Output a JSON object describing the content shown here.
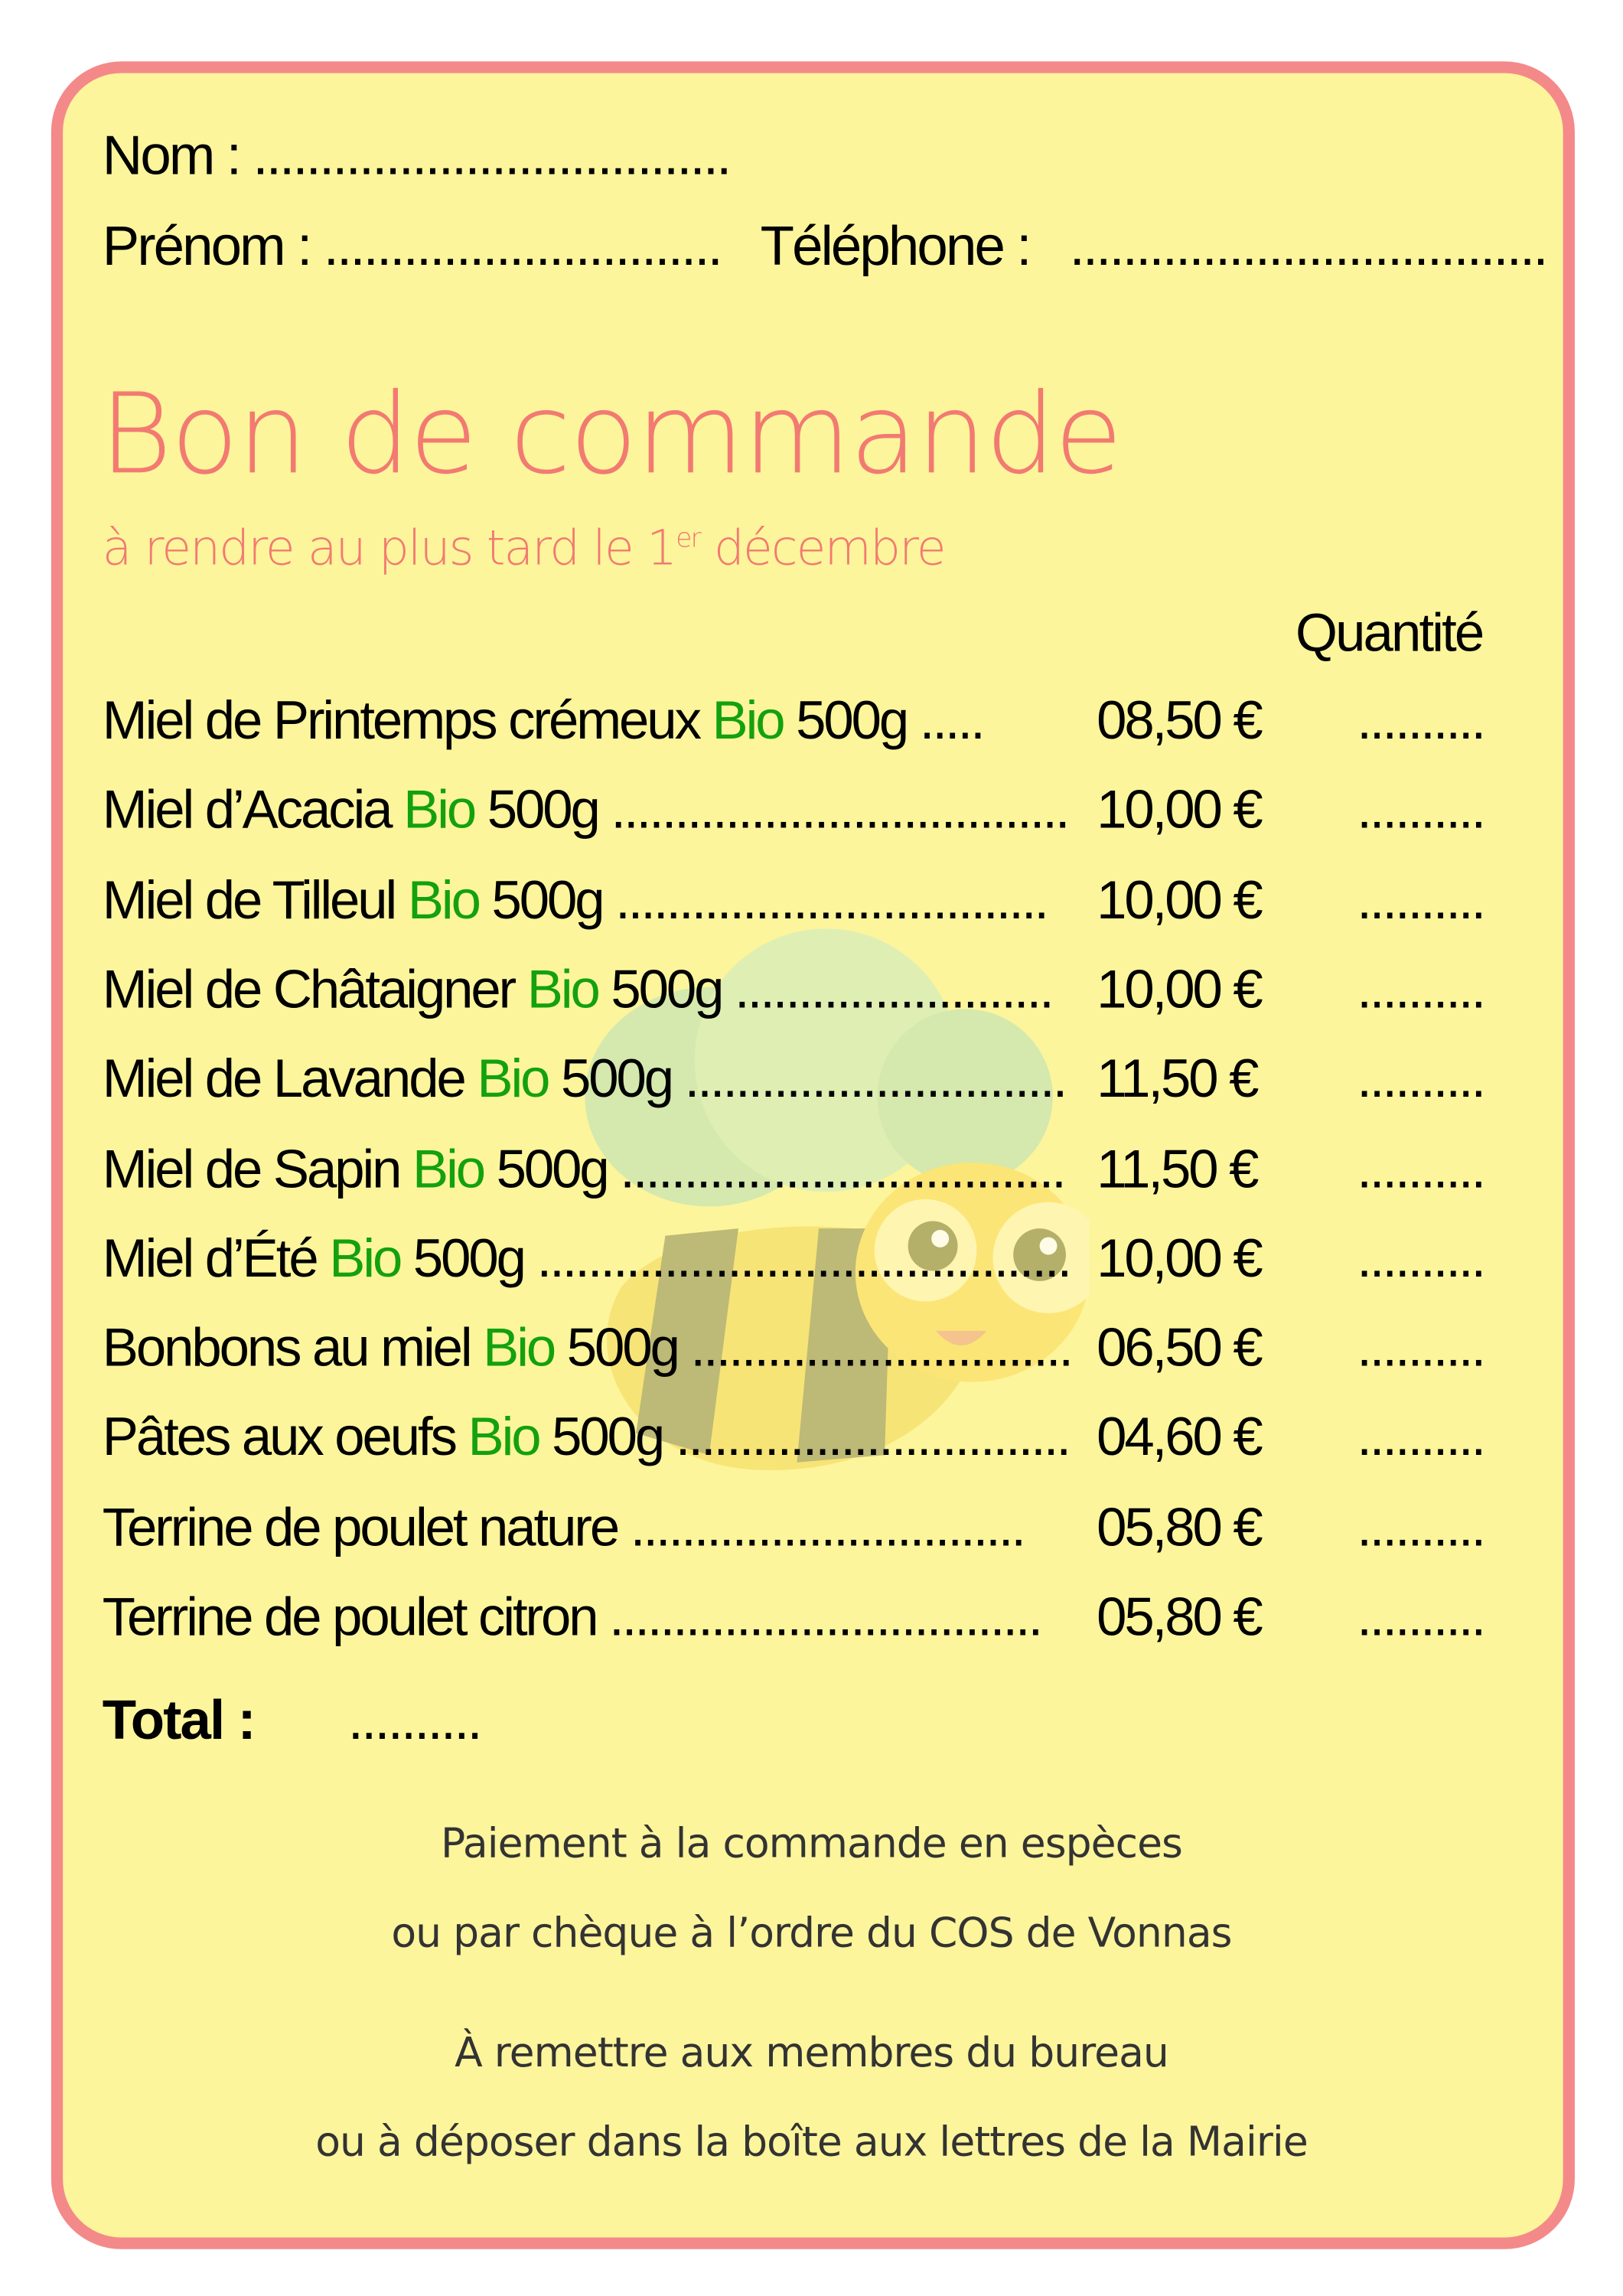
{
  "header": {
    "nom_label": "Nom :",
    "nom_value": "....................................",
    "prenom_label": "Prénom :",
    "prenom_value": "..............................",
    "telephone_label": "Téléphone :",
    "telephone_value": "...................................."
  },
  "title": "Bon de commande",
  "subtitle": {
    "before": "à rendre au plus tard le 1",
    "sup": "er",
    "after": " décembre"
  },
  "quantity_header": "Quantité",
  "products": [
    {
      "name": "Miel de Printemps crémeux",
      "bio": "Bio",
      "weight": " 500g .....",
      "price": "08,50 €",
      "qty": ".........."
    },
    {
      "name": "Miel d’Acacia",
      "bio": "Bio",
      "weight": "500g ....................................",
      "price": "10,00 €",
      "qty": ".........."
    },
    {
      "name": "Miel de Tilleul",
      "bio": "Bio",
      "weight": "500g ..................................",
      "price": "10,00 €",
      "qty": ".........."
    },
    {
      "name": "Miel de Châtaigner",
      "bio": "Bio",
      "weight": "500g .........................",
      "price": "10,00 €",
      "qty": ".........."
    },
    {
      "name": "Miel de Lavande",
      "bio": "Bio",
      "weight": "500g ..............................",
      "price": "11,50 €",
      "qty": ".........."
    },
    {
      "name": "Miel de Sapin",
      "bio": "Bio",
      "weight": "500g ...................................",
      "price": "11,50 €",
      "qty": ".........."
    },
    {
      "name": "Miel d’Été",
      "bio": "Bio",
      "weight": "500g ..........................................",
      "price": "10,00 €",
      "qty": ".........."
    },
    {
      "name": "Bonbons au miel",
      "bio": "Bio",
      "weight": "500g ..............................",
      "price": "06,50 €",
      "qty": ".........."
    },
    {
      "name": "Pâtes aux oeufs",
      "bio": "Bio",
      "weight": "500g ...............................",
      "price": "04,60 €",
      "qty": ".........."
    },
    {
      "name": "Terrine de poulet nature",
      "bio": "",
      "weight": "...............................",
      "price": "05,80 €",
      "qty": ".........."
    },
    {
      "name": "Terrine de poulet citron",
      "bio": "",
      "weight": "..................................",
      "price": "05,80 €",
      "qty": ".........."
    }
  ],
  "total": {
    "label": "Total :",
    "value": ".........."
  },
  "footer": [
    "Paiement à la commande en espèces",
    "ou par chèque à l’ordre du COS de Vonnas",
    "À remettre aux membres du bureau",
    "ou à déposer dans la boîte aux lettres de la Mairie"
  ],
  "colors": {
    "background": "#fcf59b",
    "border": "#f4898a",
    "title": "#f27a72",
    "bio": "#13a10e"
  }
}
